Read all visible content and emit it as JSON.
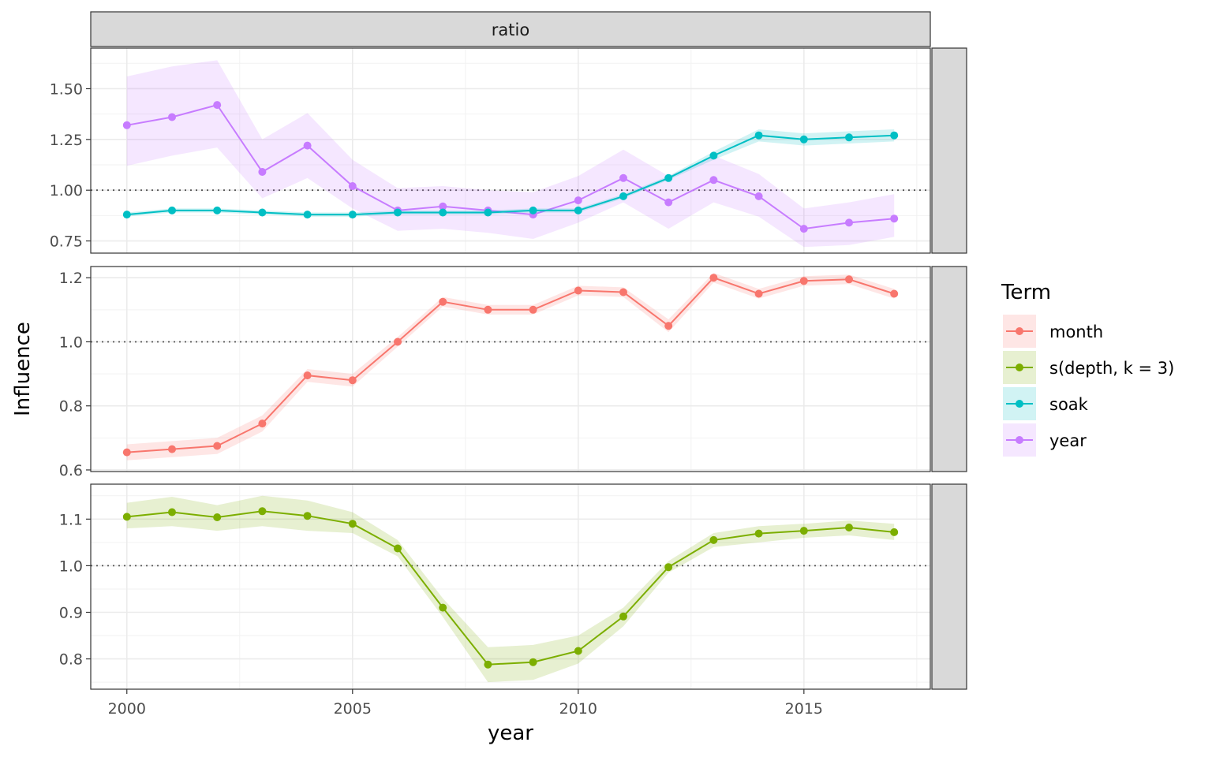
{
  "chart_data": {
    "type": "line",
    "facet_column_label": "ratio",
    "xlabel": "year",
    "ylabel": "Influence",
    "x_ticks": [
      2000,
      2005,
      2010,
      2015
    ],
    "xlim": [
      1999.2,
      2017.8
    ],
    "reference_line": 1.0,
    "legend": {
      "title": "Term",
      "placement": "right",
      "entries": [
        {
          "name": "month",
          "color": "#F8766D"
        },
        {
          "name": "s(depth, k = 3)",
          "color": "#7CAE00"
        },
        {
          "name": "soak",
          "color": "#00BFC4"
        },
        {
          "name": "year",
          "color": "#C77CFF"
        }
      ]
    },
    "panels": [
      {
        "strip": "conditional",
        "ylim": [
          0.69,
          1.7
        ],
        "y_ticks": [
          {
            "v": 0.75,
            "label": "0.75"
          },
          {
            "v": 1.0,
            "label": "1.00"
          },
          {
            "v": 1.25,
            "label": "1.25"
          },
          {
            "v": 1.5,
            "label": "1.50"
          }
        ],
        "series": [
          {
            "name": "year",
            "x": [
              2000,
              2001,
              2002,
              2003,
              2004,
              2005,
              2006,
              2007,
              2008,
              2009,
              2010,
              2011,
              2012,
              2013,
              2014,
              2015,
              2016,
              2017
            ],
            "values": [
              1.32,
              1.36,
              1.42,
              1.09,
              1.22,
              1.02,
              0.9,
              0.92,
              0.9,
              0.88,
              0.95,
              1.06,
              0.94,
              1.05,
              0.97,
              0.81,
              0.84,
              0.86
            ],
            "lower": [
              1.12,
              1.17,
              1.21,
              0.96,
              1.06,
              0.91,
              0.8,
              0.81,
              0.79,
              0.76,
              0.84,
              0.94,
              0.81,
              0.94,
              0.87,
              0.72,
              0.73,
              0.77
            ],
            "upper": [
              1.56,
              1.61,
              1.64,
              1.25,
              1.38,
              1.15,
              1.01,
              1.02,
              1.0,
              0.99,
              1.07,
              1.2,
              1.07,
              1.17,
              1.08,
              0.91,
              0.94,
              0.98
            ]
          },
          {
            "name": "soak",
            "x": [
              2000,
              2001,
              2002,
              2003,
              2004,
              2005,
              2006,
              2007,
              2008,
              2009,
              2010,
              2011,
              2012,
              2013,
              2014,
              2015,
              2016,
              2017
            ],
            "values": [
              0.88,
              0.9,
              0.9,
              0.89,
              0.88,
              0.88,
              0.89,
              0.89,
              0.89,
              0.9,
              0.9,
              0.97,
              1.06,
              1.17,
              1.27,
              1.25,
              1.26,
              1.27
            ],
            "lower": [
              0.87,
              0.89,
              0.89,
              0.88,
              0.87,
              0.87,
              0.88,
              0.88,
              0.88,
              0.89,
              0.89,
              0.96,
              1.05,
              1.15,
              1.24,
              1.22,
              1.23,
              1.24
            ],
            "upper": [
              0.89,
              0.91,
              0.91,
              0.9,
              0.89,
              0.89,
              0.9,
              0.9,
              0.9,
              0.91,
              0.91,
              0.98,
              1.07,
              1.19,
              1.3,
              1.28,
              1.29,
              1.3
            ]
          }
        ]
      },
      {
        "strip": "conditional:group_leve",
        "ylim": [
          0.595,
          1.235
        ],
        "y_ticks": [
          {
            "v": 0.6,
            "label": "0.6"
          },
          {
            "v": 0.8,
            "label": "0.8"
          },
          {
            "v": 1.0,
            "label": "1.0"
          },
          {
            "v": 1.2,
            "label": "1.2"
          }
        ],
        "series": [
          {
            "name": "month",
            "x": [
              2000,
              2001,
              2002,
              2003,
              2004,
              2005,
              2006,
              2007,
              2008,
              2009,
              2010,
              2011,
              2012,
              2013,
              2014,
              2015,
              2016,
              2017
            ],
            "values": [
              0.655,
              0.665,
              0.675,
              0.745,
              0.895,
              0.88,
              1.0,
              1.125,
              1.1,
              1.1,
              1.16,
              1.155,
              1.05,
              1.2,
              1.15,
              1.19,
              1.195,
              1.15
            ],
            "lower": [
              0.63,
              0.64,
              0.65,
              0.72,
              0.875,
              0.86,
              0.985,
              1.11,
              1.085,
              1.085,
              1.145,
              1.14,
              1.03,
              1.185,
              1.135,
              1.175,
              1.18,
              1.135
            ],
            "upper": [
              0.68,
              0.69,
              0.7,
              0.77,
              0.915,
              0.9,
              1.015,
              1.14,
              1.115,
              1.115,
              1.175,
              1.17,
              1.07,
              1.215,
              1.165,
              1.205,
              1.21,
              1.165
            ]
          }
        ]
      },
      {
        "strip": "conditional:smooth",
        "ylim": [
          0.735,
          1.175
        ],
        "y_ticks": [
          {
            "v": 0.8,
            "label": "0.8"
          },
          {
            "v": 0.9,
            "label": "0.9"
          },
          {
            "v": 1.0,
            "label": "1.0"
          },
          {
            "v": 1.1,
            "label": "1.1"
          }
        ],
        "series": [
          {
            "name": "s(depth, k = 3)",
            "x": [
              2000,
              2001,
              2002,
              2003,
              2004,
              2005,
              2006,
              2007,
              2008,
              2009,
              2010,
              2011,
              2012,
              2013,
              2014,
              2015,
              2016,
              2017
            ],
            "values": [
              1.105,
              1.115,
              1.104,
              1.117,
              1.107,
              1.09,
              1.037,
              0.91,
              0.788,
              0.793,
              0.817,
              0.891,
              0.997,
              1.055,
              1.069,
              1.075,
              1.082,
              1.072
            ],
            "lower": [
              1.08,
              1.085,
              1.075,
              1.085,
              1.075,
              1.07,
              1.02,
              0.89,
              0.75,
              0.755,
              0.79,
              0.87,
              0.985,
              1.04,
              1.05,
              1.06,
              1.065,
              1.055
            ],
            "upper": [
              1.135,
              1.148,
              1.13,
              1.15,
              1.14,
              1.115,
              1.055,
              0.93,
              0.825,
              0.83,
              0.85,
              0.91,
              1.01,
              1.07,
              1.085,
              1.09,
              1.097,
              1.09
            ]
          }
        ]
      }
    ]
  }
}
